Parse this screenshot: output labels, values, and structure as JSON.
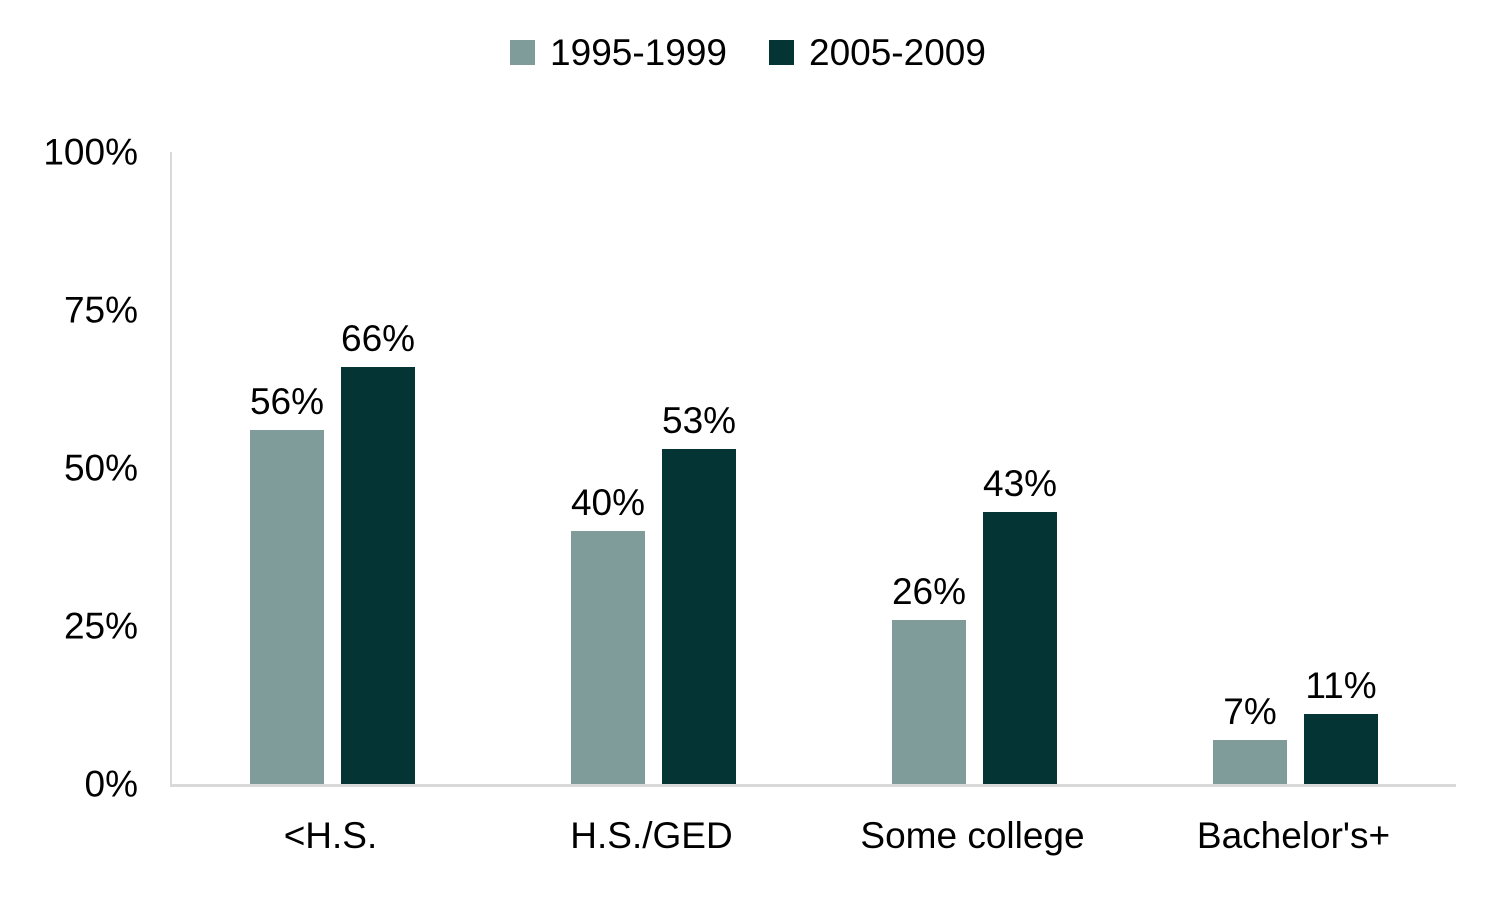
{
  "chart_data": {
    "type": "bar",
    "title": "",
    "xlabel": "",
    "ylabel": "",
    "categories": [
      "<H.S.",
      "H.S./GED",
      "Some college",
      "Bachelor's+"
    ],
    "series": [
      {
        "name": "1995-1999",
        "color": "#7F9C9B",
        "values": [
          56,
          40,
          26,
          7
        ]
      },
      {
        "name": "2005-2009",
        "color": "#043434",
        "values": [
          66,
          53,
          43,
          11
        ]
      }
    ],
    "data_labels_shown": true,
    "value_suffix": "%",
    "ylim": [
      0,
      100
    ],
    "yticks": [
      0,
      25,
      50,
      75,
      100
    ],
    "ytick_suffix": "%",
    "legend_position": "top",
    "grid": false,
    "axis_line_color": "#D9D9D9",
    "text_color": "#000000",
    "background_color": "#FFFFFF"
  }
}
